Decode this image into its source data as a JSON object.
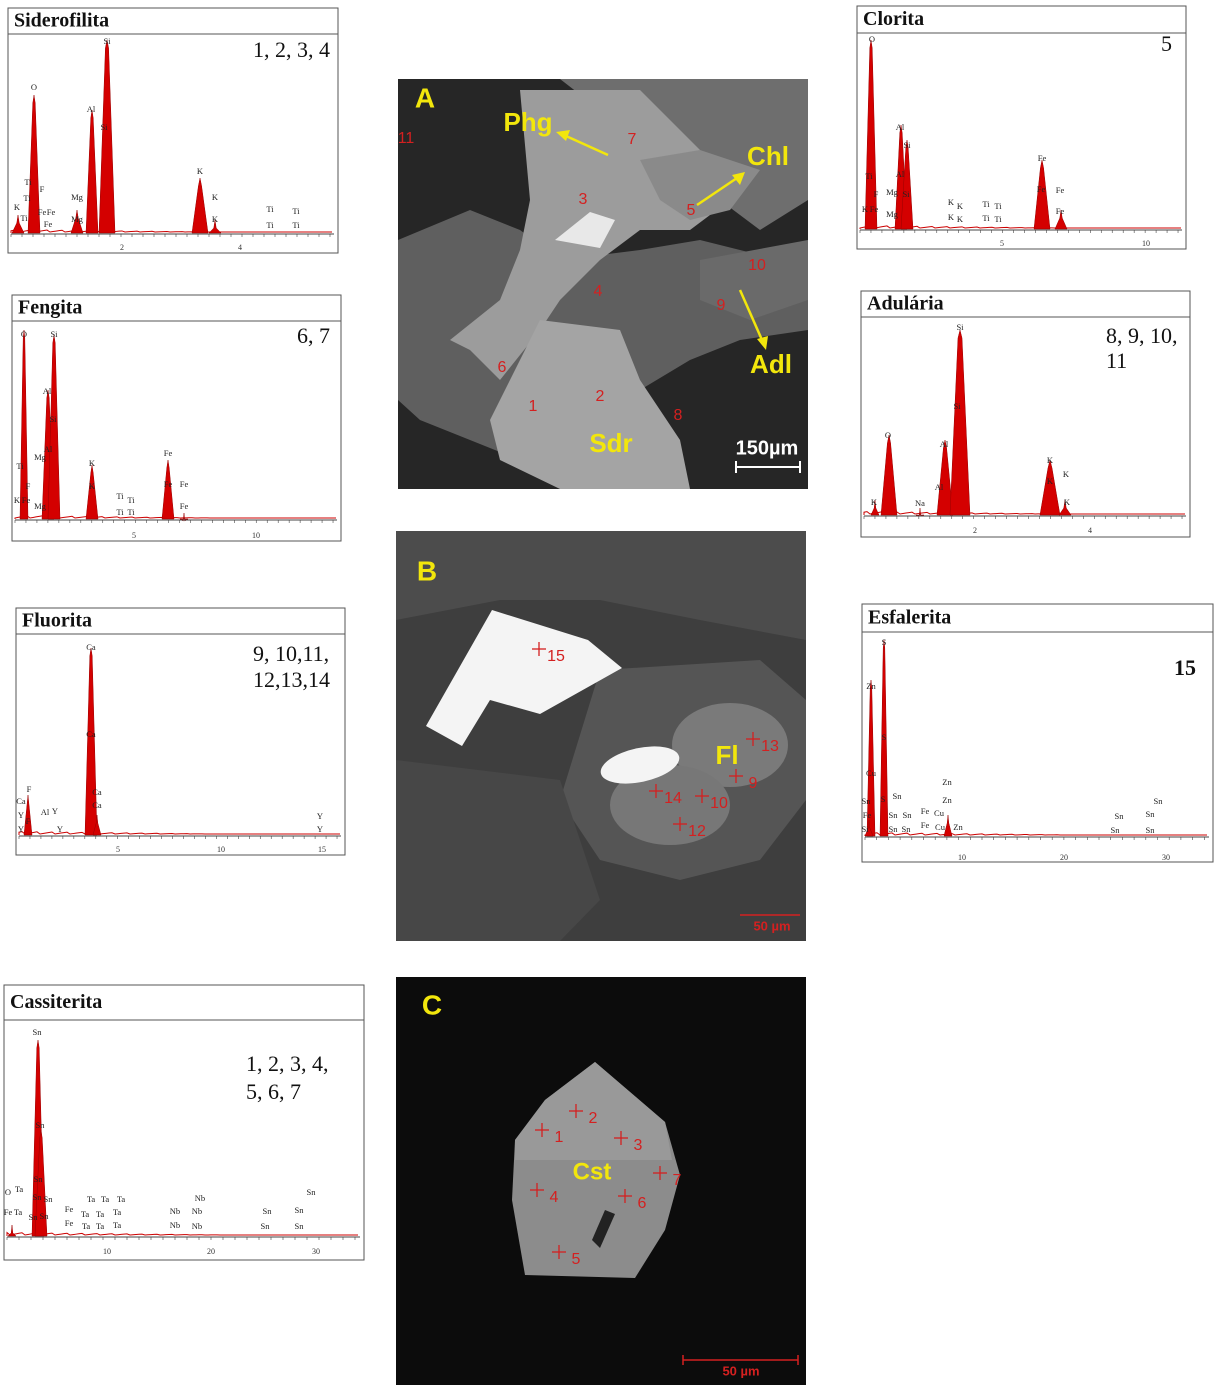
{
  "spectra": [
    {
      "title": "Siderofilita",
      "points": [
        "1, 2, 3, 4"
      ],
      "xticks": [
        "2",
        "4"
      ],
      "elements": [
        "Si",
        "O",
        "Al",
        "Si",
        "K",
        "Ti",
        "F",
        "Mg",
        "K",
        "Ti",
        "Fe",
        "Fe",
        "Mg",
        "K",
        "Ti",
        "Fe",
        "K",
        "Ti",
        "Ti",
        "Ti",
        "Ti"
      ]
    },
    {
      "title": "Fengita",
      "points": [
        "6, 7"
      ],
      "xticks": [
        "5",
        "10"
      ],
      "elements": [
        "O",
        "Si",
        "Al",
        "Si",
        "Mg",
        "Al",
        "Ti",
        "K",
        "K",
        "F",
        "Fe",
        "Fe",
        "Fe",
        "Ti",
        "Ti",
        "Ti",
        "Ti",
        "K",
        "Fe",
        "Mg",
        "Fe"
      ]
    },
    {
      "title": "Fluorita",
      "points": [
        "9, 10,11,",
        "12,13,14"
      ],
      "xticks": [
        "5",
        "10",
        "15"
      ],
      "elements": [
        "Ca",
        "Ca",
        "F",
        "Ca",
        "Ca",
        "Al",
        "Y",
        "Ca",
        "Y",
        "Y",
        "F",
        "Y",
        "Y",
        "Y"
      ]
    },
    {
      "title": "Cassiterita",
      "points": [
        "1, 2, 3, 4,",
        "5, 6, 7"
      ],
      "xticks": [
        "10",
        "20",
        "30"
      ],
      "elements": [
        "Sn",
        "Sn",
        "Sn",
        "O",
        "Ta",
        "Sn",
        "Sn",
        "Fe",
        "Ta",
        "Sn",
        "Sn",
        "Fe",
        "Fe",
        "Ta",
        "Ta",
        "Ta",
        "Ta",
        "Ta",
        "Ta",
        "Ta",
        "Ta",
        "Ta",
        "Nb",
        "Nb",
        "Nb",
        "Nb",
        "Nb",
        "Sn",
        "Sn",
        "Sn",
        "Sn",
        "Sn"
      ]
    },
    {
      "title": "Clorita",
      "points": [
        "5"
      ],
      "xticks": [
        "5",
        "10"
      ],
      "elements": [
        "O",
        "Al",
        "Si",
        "Ti",
        "Al",
        "F",
        "Mg",
        "Si",
        "Fe",
        "Fe",
        "Fe",
        "K",
        "Fe",
        "Mg",
        "K",
        "K",
        "Ti",
        "Ti",
        "Ti",
        "Ti",
        "K",
        "K",
        "Fe"
      ]
    },
    {
      "title": "Adulária",
      "points": [
        "8, 9, 10,",
        "11"
      ],
      "xticks": [
        "2",
        "4"
      ],
      "elements": [
        "Si",
        "O",
        "Al",
        "Si",
        "K",
        "K",
        "K",
        "Na",
        "Al",
        "K",
        "K"
      ]
    },
    {
      "title": "Esfalerita",
      "points": [
        "15"
      ],
      "xticks": [
        "10",
        "20",
        "30"
      ],
      "elements": [
        "S",
        "Zn",
        "S",
        "Cu",
        "Zn",
        "Zn",
        "Sn",
        "S",
        "Sn",
        "Fe",
        "Sn",
        "Sn",
        "Fe",
        "Cu",
        "Sn",
        "Sn",
        "Sn",
        "Sn",
        "Sn",
        "Fe",
        "Cu",
        "Zn",
        "Sn",
        "Sn",
        "Si"
      ]
    }
  ],
  "images": [
    {
      "label": "A",
      "phases": [
        "Phg",
        "Chl",
        "Adl",
        "Sdr"
      ],
      "points": [
        "1",
        "2",
        "3",
        "4",
        "5",
        "6",
        "7",
        "8",
        "9",
        "10",
        "11"
      ],
      "scale_bar": "150µm"
    },
    {
      "label": "B",
      "phases": [
        "Fl"
      ],
      "points": [
        "15",
        "13",
        "9",
        "14",
        "10",
        "12"
      ],
      "scale_bar": "50 µm"
    },
    {
      "label": "C",
      "phases": [
        "Cst"
      ],
      "points": [
        "1",
        "2",
        "3",
        "4",
        "5",
        "6",
        "7"
      ],
      "scale_bar": "50 µm"
    }
  ]
}
